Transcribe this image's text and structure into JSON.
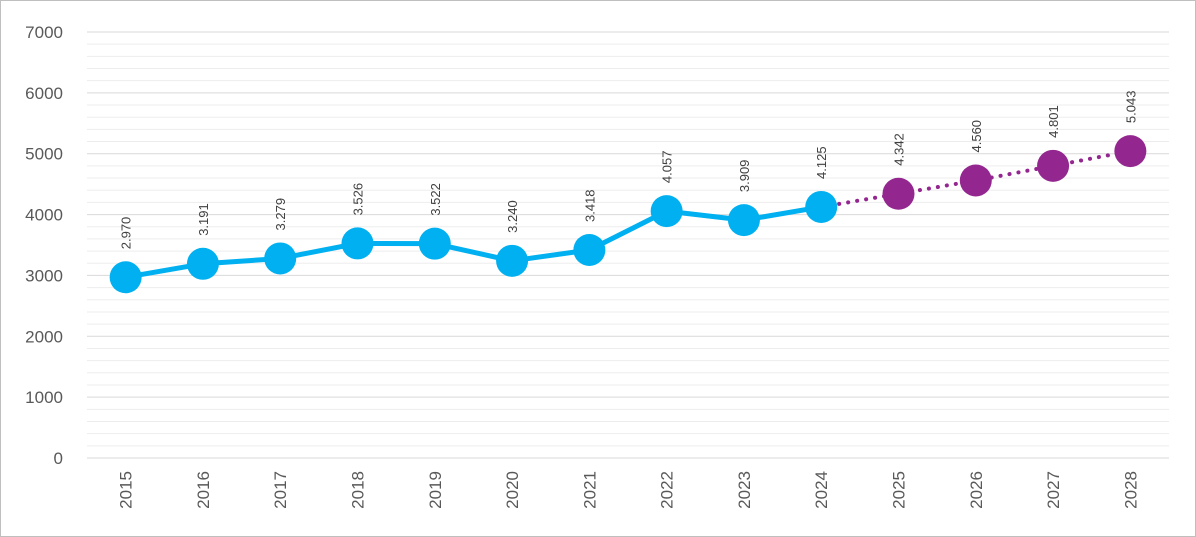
{
  "chart_data": {
    "type": "line",
    "x": [
      "2015",
      "2016",
      "2017",
      "2018",
      "2019",
      "2020",
      "2021",
      "2022",
      "2023",
      "2024",
      "2025",
      "2026",
      "2027",
      "2028"
    ],
    "series": [
      {
        "values": [
          2970,
          3191,
          3279,
          3526,
          3522,
          3240,
          3418,
          4057,
          3909,
          4125,
          null,
          null,
          null,
          null
        ],
        "labels": [
          "2.970",
          "3.191",
          "3.279",
          "3.526",
          "3.522",
          "3.240",
          "3.418",
          "4.057",
          "3.909",
          "4.125",
          null,
          null,
          null,
          null
        ],
        "color": "#00b0f0",
        "style": "solid"
      },
      {
        "values": [
          null,
          null,
          null,
          null,
          null,
          null,
          null,
          null,
          null,
          4125,
          4342,
          4560,
          4801,
          5043
        ],
        "labels": [
          null,
          null,
          null,
          null,
          null,
          null,
          null,
          null,
          null,
          null,
          "4.342",
          "4.560",
          "4.801",
          "5.043"
        ],
        "color": "#93278f",
        "style": "dotted"
      }
    ],
    "ylim": [
      0,
      7000
    ],
    "yticks": [
      "0",
      "1000",
      "2000",
      "3000",
      "4000",
      "5000",
      "6000",
      "7000"
    ],
    "grid": true,
    "legend": "none",
    "title": "",
    "xlabel": "",
    "ylabel": ""
  }
}
